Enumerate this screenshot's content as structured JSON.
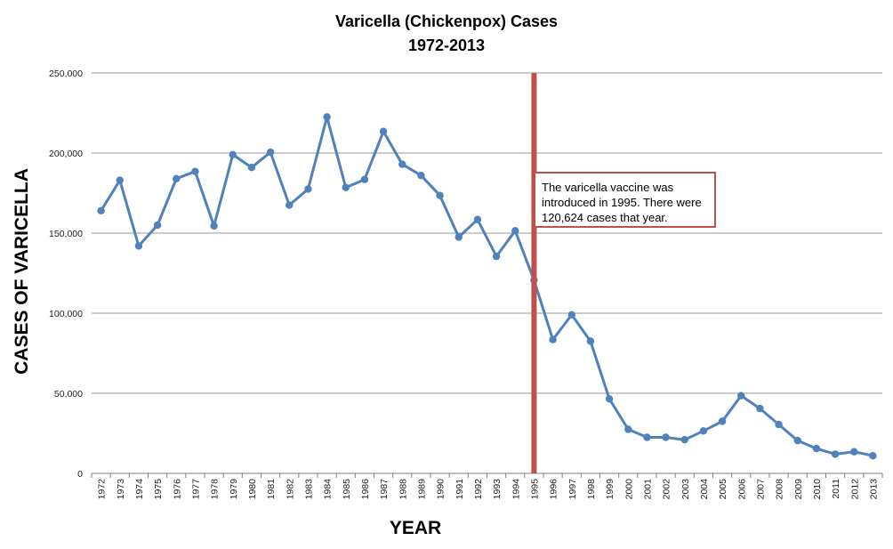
{
  "chart_data": {
    "type": "line",
    "title": "Varicella (Chickenpox) Cases",
    "subtitle": "1972-2013",
    "xlabel": "YEAR",
    "ylabel": "CASES OF VARICELLA",
    "ylim": [
      0,
      250000
    ],
    "yticks": [
      "0",
      "50,000",
      "100,000",
      "150,000",
      "200,000",
      "250,000"
    ],
    "ytick_values": [
      0,
      50000,
      100000,
      150000,
      200000,
      250000
    ],
    "grid": true,
    "series_color": "#4f81bd",
    "marker_line_color": "#c0504d",
    "marker_year": "1995",
    "categories": [
      "1972",
      "1973",
      "1974",
      "1975",
      "1976",
      "1977",
      "1978",
      "1979",
      "1980",
      "1981",
      "1982",
      "1983",
      "1984",
      "1985",
      "1986",
      "1987",
      "1988",
      "1989",
      "1990",
      "1991",
      "1992",
      "1993",
      "1994",
      "1995",
      "1996",
      "1997",
      "1998",
      "1999",
      "2000",
      "2001",
      "2002",
      "2003",
      "2004",
      "2005",
      "2006",
      "2007",
      "2008",
      "2009",
      "2010",
      "2011",
      "2012",
      "2013"
    ],
    "series": [
      {
        "values": [
          164000,
          183000,
          142000,
          155000,
          184000,
          188500,
          154500,
          199000,
          191000,
          200500,
          167500,
          177500,
          222500,
          178500,
          183500,
          213500,
          193000,
          186000,
          173500,
          147500,
          158500,
          135500,
          151500,
          120624,
          83500,
          99000,
          82500,
          46500,
          27500,
          22500,
          22500,
          21000,
          26500,
          32500,
          48500,
          40500,
          30500,
          20500,
          15500,
          12000,
          13500,
          11000
        ]
      }
    ],
    "annotation": "The varicella vaccine was introduced in 1995. There were 120,624 cases that year."
  }
}
